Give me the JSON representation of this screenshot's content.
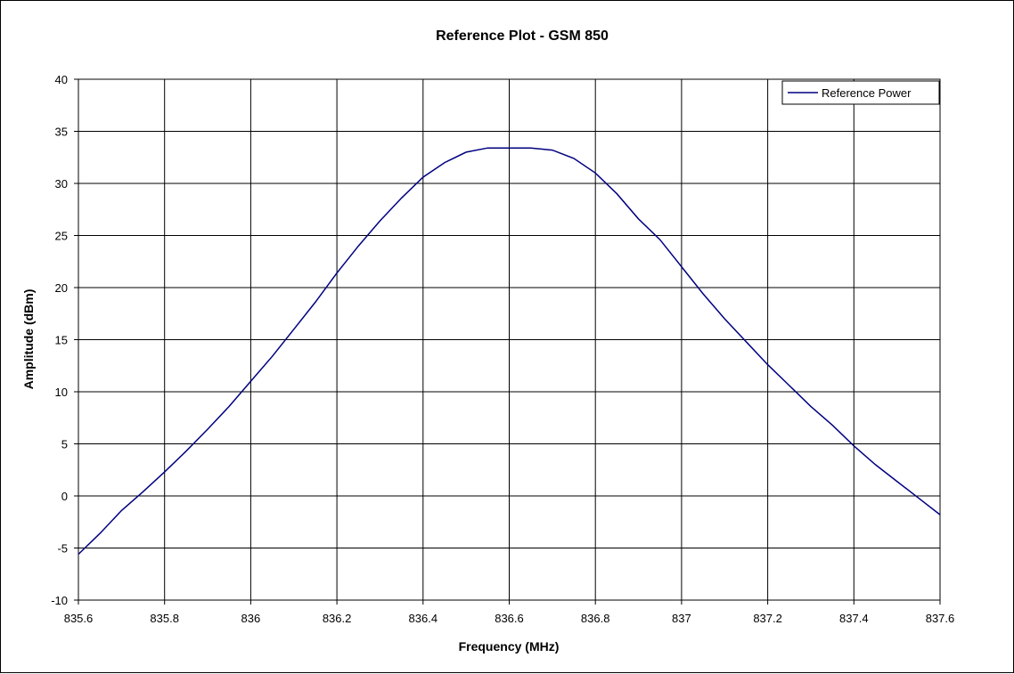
{
  "chart_data": {
    "type": "line",
    "title": "Reference Plot - GSM 850",
    "xlabel": "Frequency (MHz)",
    "ylabel": "Amplitude (dBm)",
    "xlim": [
      835.6,
      837.6
    ],
    "ylim": [
      -10,
      40
    ],
    "xticks": [
      "835.6",
      "835.8",
      "836",
      "836.2",
      "836.4",
      "836.6",
      "836.8",
      "837",
      "837.2",
      "837.4",
      "837.6"
    ],
    "yticks": [
      "40",
      "35",
      "30",
      "25",
      "20",
      "15",
      "10",
      "5",
      "0",
      "-5",
      "-10"
    ],
    "grid": true,
    "legend": {
      "position": "top-right"
    },
    "series": [
      {
        "name": "Reference Power",
        "color": "#000080",
        "x": [
          835.6,
          835.65,
          835.7,
          835.75,
          835.8,
          835.85,
          835.9,
          835.95,
          836.0,
          836.05,
          836.1,
          836.15,
          836.2,
          836.25,
          836.3,
          836.35,
          836.4,
          836.45,
          836.5,
          836.55,
          836.6,
          836.65,
          836.7,
          836.75,
          836.8,
          836.85,
          836.9,
          836.95,
          837.0,
          837.05,
          837.1,
          837.15,
          837.2,
          837.25,
          837.3,
          837.35,
          837.4,
          837.45,
          837.5,
          837.55,
          837.6
        ],
        "y": [
          -5.6,
          -3.6,
          -1.4,
          0.4,
          2.3,
          4.3,
          6.4,
          8.6,
          11.0,
          13.4,
          16.0,
          18.6,
          21.4,
          24.0,
          26.4,
          28.6,
          30.6,
          32.0,
          33.0,
          33.4,
          33.4,
          33.4,
          33.2,
          32.4,
          31.0,
          29.0,
          26.6,
          24.6,
          22.0,
          19.4,
          17.0,
          14.8,
          12.6,
          10.6,
          8.6,
          6.8,
          4.8,
          3.0,
          1.4,
          -0.2,
          -1.8
        ]
      }
    ]
  }
}
